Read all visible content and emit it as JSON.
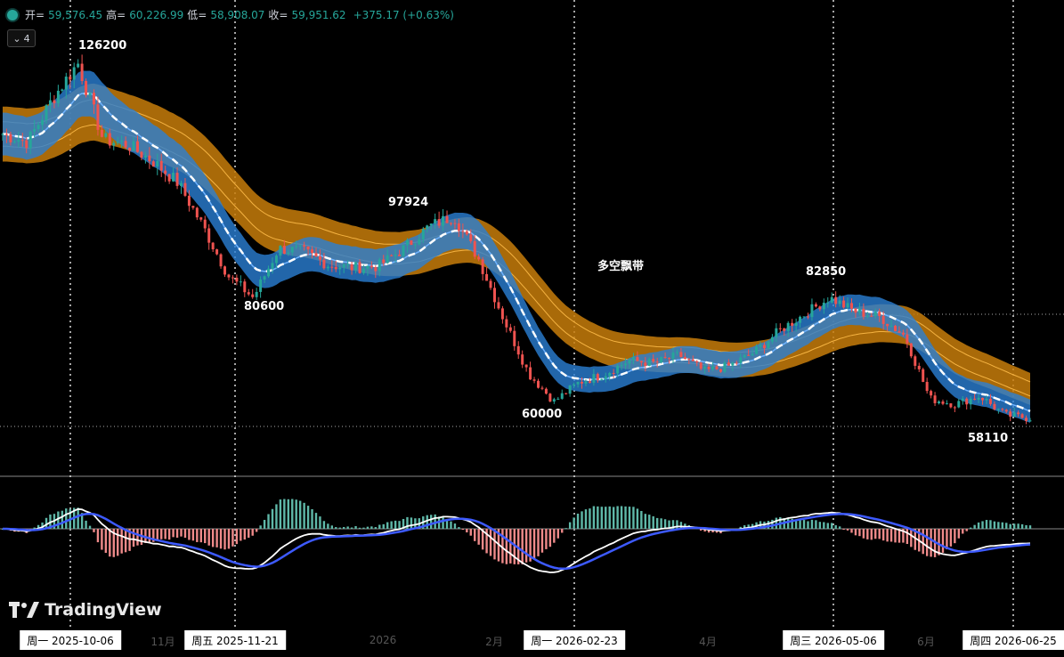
{
  "header": {
    "open_label": "开=",
    "open": "59,576.45",
    "high_label": "高=",
    "high": "60,226.99",
    "low_label": "低=",
    "low": "58,908.07",
    "close_label": "收=",
    "close": "59,951.62",
    "change": "+375.17 (+0.63%)",
    "collapse_count": "4"
  },
  "logo_text": "TradingView",
  "colors": {
    "up": "#26a69a",
    "down": "#ef5350",
    "blue_band": "#2a7fd4",
    "orange_band": "#c77d0a",
    "macd_line": "#ffffff",
    "signal_line": "#3d5afe"
  },
  "time_axis": {
    "ticks": [
      "11月",
      "2026",
      "2月",
      "4月",
      "6月"
    ],
    "date_tags": [
      "周一 2025-10-06",
      "周五 2025-11-21",
      "周一 2026-02-23",
      "周三 2026-05-06",
      "周四 2026-06-25"
    ]
  },
  "chart_data": {
    "type": "candlestick",
    "annotations": [
      "126200",
      "80600",
      "97924",
      "60000",
      "82850",
      "58110",
      "多空飘带"
    ],
    "price_series": [
      {
        "date": "2025-09-15",
        "close": 112000
      },
      {
        "date": "2025-09-22",
        "close": 110500
      },
      {
        "date": "2025-09-29",
        "close": 118500
      },
      {
        "date": "2025-10-06",
        "close": 125000
      },
      {
        "date": "2025-10-13",
        "close": 111000
      },
      {
        "date": "2025-10-20",
        "close": 110000
      },
      {
        "date": "2025-10-27",
        "close": 107000
      },
      {
        "date": "2025-11-03",
        "close": 103000
      },
      {
        "date": "2025-11-10",
        "close": 95000
      },
      {
        "date": "2025-11-17",
        "close": 86000
      },
      {
        "date": "2025-11-21",
        "close": 82000
      },
      {
        "date": "2025-12-01",
        "close": 91000
      },
      {
        "date": "2025-12-08",
        "close": 90500
      },
      {
        "date": "2025-12-15",
        "close": 88000
      },
      {
        "date": "2025-12-22",
        "close": 87500
      },
      {
        "date": "2025-12-29",
        "close": 87800
      },
      {
        "date": "2026-01-05",
        "close": 91000
      },
      {
        "date": "2026-01-12",
        "close": 95000
      },
      {
        "date": "2026-01-19",
        "close": 97000
      },
      {
        "date": "2026-01-26",
        "close": 89000
      },
      {
        "date": "2026-02-02",
        "close": 78000
      },
      {
        "date": "2026-02-09",
        "close": 68000
      },
      {
        "date": "2026-02-16",
        "close": 63000
      },
      {
        "date": "2026-02-23",
        "close": 66500
      },
      {
        "date": "2026-03-02",
        "close": 68000
      },
      {
        "date": "2026-03-09",
        "close": 70500
      },
      {
        "date": "2026-03-16",
        "close": 70000
      },
      {
        "date": "2026-03-23",
        "close": 71500
      },
      {
        "date": "2026-03-30",
        "close": 68500
      },
      {
        "date": "2026-04-06",
        "close": 69500
      },
      {
        "date": "2026-04-13",
        "close": 72000
      },
      {
        "date": "2026-04-20",
        "close": 76000
      },
      {
        "date": "2026-04-27",
        "close": 79000
      },
      {
        "date": "2026-05-04",
        "close": 82000
      },
      {
        "date": "2026-05-11",
        "close": 79500
      },
      {
        "date": "2026-05-18",
        "close": 78500
      },
      {
        "date": "2026-05-25",
        "close": 75000
      },
      {
        "date": "2026-06-01",
        "close": 63500
      },
      {
        "date": "2026-06-08",
        "close": 62500
      },
      {
        "date": "2026-06-15",
        "close": 64000
      },
      {
        "date": "2026-06-22",
        "close": 60500
      },
      {
        "date": "2026-06-25",
        "close": 59951.62
      }
    ]
  }
}
